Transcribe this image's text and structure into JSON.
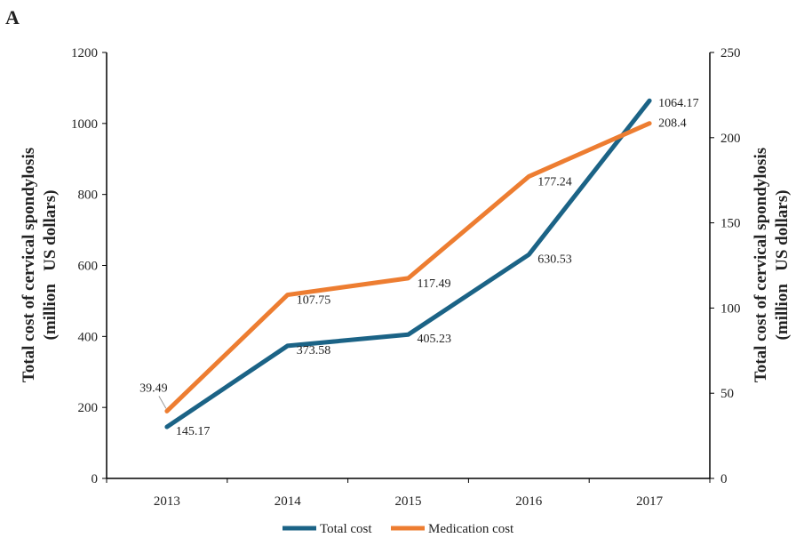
{
  "panel_label": "A",
  "chart_data": {
    "type": "line",
    "categories": [
      "2013",
      "2014",
      "2015",
      "2016",
      "2017"
    ],
    "series": [
      {
        "name": "Total cost",
        "axis": "left",
        "color": "#1b6386",
        "values": [
          145.17,
          373.58,
          405.23,
          630.53,
          1064.17
        ],
        "labels": [
          "145.17",
          "373.58",
          "405.23",
          "630.53",
          "1064.17"
        ]
      },
      {
        "name": "Medication cost",
        "axis": "right",
        "color": "#ed7d31",
        "values": [
          39.49,
          107.75,
          117.49,
          177.24,
          208.4
        ],
        "labels": [
          "39.49",
          "107.75",
          "117.49",
          "177.24",
          "208.4"
        ]
      }
    ],
    "ylabel_left": [
      "Total cost of  cervical spondylosis",
      "(million   US dollars)"
    ],
    "ylabel_right": [
      "Total cost of  cervical spondylosis",
      "(million   US dollars)"
    ],
    "ylim_left": [
      0,
      1200
    ],
    "yticks_left": [
      "0",
      "200",
      "400",
      "600",
      "800",
      "1000",
      "1200"
    ],
    "ylim_right": [
      0,
      250
    ],
    "yticks_right": [
      "0",
      "50",
      "100",
      "150",
      "200",
      "250"
    ],
    "grid": false,
    "legend_position": "bottom"
  }
}
